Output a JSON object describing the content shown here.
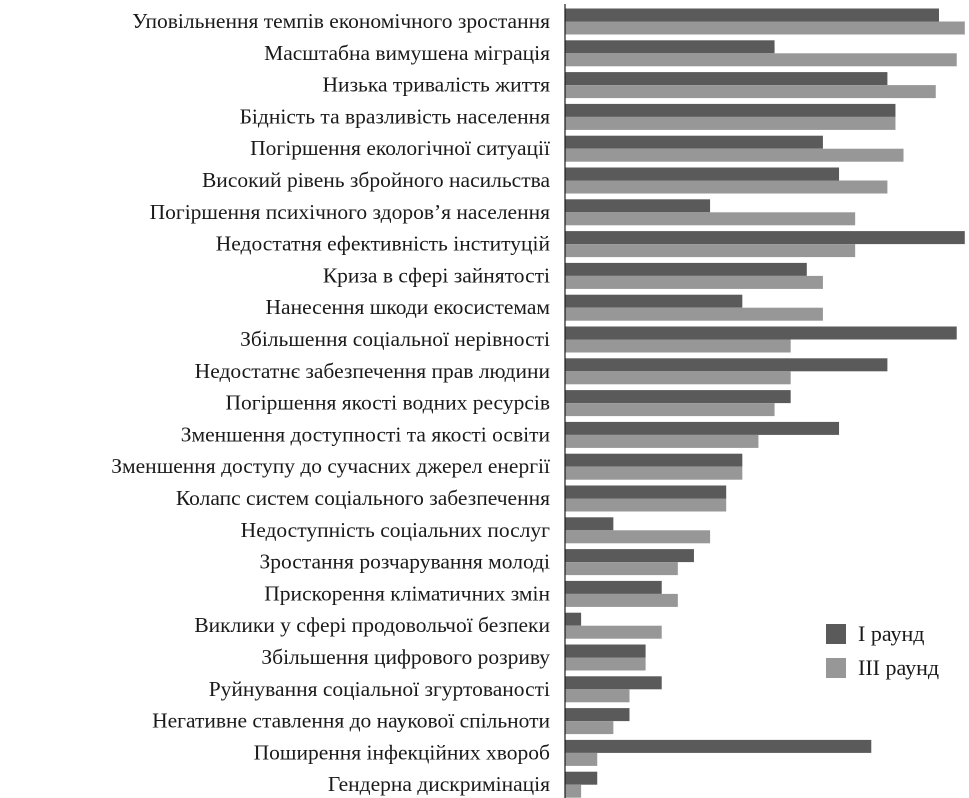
{
  "chart_data": {
    "type": "bar",
    "orientation": "horizontal",
    "categories": [
      "Уповільнення темпів економічного зростання",
      "Масштабна вимушена міграція",
      "Низька тривалість життя",
      "Бідність та вразливість населення",
      "Погіршення екологічної ситуації",
      "Високий рівень збройного насильства",
      "Погіршення психічного здоров’я населення",
      "Недостатня ефективність інституцій",
      "Криза в сфері зайнятості",
      "Нанесення шкоди екосистемам",
      "Збільшення соціальної нерівності",
      "Недостатнє забезпечення прав людини",
      "Погіршення якості водних ресурсів",
      "Зменшення доступності та якості освіти",
      "Зменшення доступу до сучасних джерел енергії",
      "Колапс систем соціального забезпечення",
      "Недоступність соціальних послуг",
      "Зростання розчарування молоді",
      "Прискорення кліматичних змін",
      "Виклики у сфері продовольчої безпеки",
      "Збільшення цифрового розриву",
      "Руйнування соціальної згуртованості",
      "Негативне ставлення до наукової спільноти",
      "Поширення інфекційних хвороб",
      "Гендерна дискримінація"
    ],
    "series": [
      {
        "name": "І раунд",
        "color": "#5a5a5a",
        "values": [
          23.2,
          13,
          20,
          20.5,
          16,
          17,
          9,
          24.8,
          15,
          11,
          24.3,
          20,
          14,
          17,
          11,
          10,
          3,
          8,
          6,
          1,
          5,
          6,
          4,
          19,
          2
        ]
      },
      {
        "name": "ІІІ раунд",
        "color": "#979797",
        "values": [
          24.8,
          24.3,
          23,
          20.5,
          21,
          20,
          18,
          18,
          16,
          16,
          14,
          14,
          13,
          12,
          11,
          10,
          9,
          7,
          7,
          6,
          5,
          4,
          3,
          2,
          1
        ]
      }
    ],
    "xlim": [
      0,
      25
    ],
    "x_ticks": [
      0,
      5,
      10,
      15,
      20,
      25
    ],
    "tick_labels_shown": false,
    "grid": false,
    "legend_position": "right"
  }
}
